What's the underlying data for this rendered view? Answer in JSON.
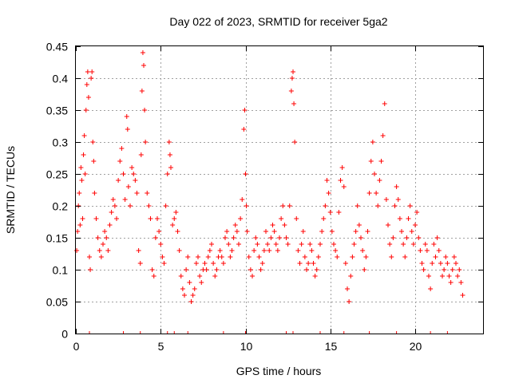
{
  "chart_data": {
    "type": "scatter",
    "title": "Day 022 of 2023, SRMTID for receiver 5ga2",
    "xlabel": "GPS time / hours",
    "ylabel": "SRMTID / TECUs",
    "xlim": [
      0,
      24
    ],
    "ylim": [
      0,
      0.45
    ],
    "xticks": [
      "0",
      "5",
      "10",
      "15",
      "20"
    ],
    "xtick_values": [
      0,
      5,
      10,
      15,
      20
    ],
    "yticks": [
      "0",
      "0.05",
      "0.1",
      "0.15",
      "0.2",
      "0.25",
      "0.3",
      "0.35",
      "0.4",
      "0.45"
    ],
    "ytick_values": [
      0,
      0.05,
      0.1,
      0.15,
      0.2,
      0.25,
      0.3,
      0.35,
      0.4,
      0.45
    ],
    "grid": true,
    "marker": "+",
    "color": "#ff0000",
    "series": [
      {
        "name": "SRMTID",
        "points": [
          [
            0.05,
            0.13
          ],
          [
            0.1,
            0.16
          ],
          [
            0.15,
            0.2
          ],
          [
            0.2,
            0.22
          ],
          [
            0.25,
            0.17
          ],
          [
            0.3,
            0.26
          ],
          [
            0.35,
            0.24
          ],
          [
            0.4,
            0.18
          ],
          [
            0.45,
            0.28
          ],
          [
            0.5,
            0.31
          ],
          [
            0.55,
            0.25
          ],
          [
            0.6,
            0.35
          ],
          [
            0.65,
            0.39
          ],
          [
            0.7,
            0.41
          ],
          [
            0.75,
            0.37
          ],
          [
            0.8,
            0.12
          ],
          [
            0.85,
            0.1
          ],
          [
            0.9,
            0.4
          ],
          [
            0.95,
            0.41
          ],
          [
            1.0,
            0.3
          ],
          [
            1.05,
            0.27
          ],
          [
            1.1,
            0.22
          ],
          [
            1.2,
            0.18
          ],
          [
            1.3,
            0.15
          ],
          [
            1.4,
            0.13
          ],
          [
            1.5,
            0.12
          ],
          [
            1.6,
            0.14
          ],
          [
            1.7,
            0.16
          ],
          [
            1.8,
            0.15
          ],
          [
            1.9,
            0.13
          ],
          [
            2.0,
            0.17
          ],
          [
            2.1,
            0.19
          ],
          [
            2.2,
            0.21
          ],
          [
            2.3,
            0.2
          ],
          [
            2.4,
            0.18
          ],
          [
            2.5,
            0.24
          ],
          [
            2.6,
            0.27
          ],
          [
            2.7,
            0.29
          ],
          [
            2.8,
            0.25
          ],
          [
            2.9,
            0.21
          ],
          [
            3.0,
            0.34
          ],
          [
            3.05,
            0.32
          ],
          [
            3.1,
            0.23
          ],
          [
            3.2,
            0.2
          ],
          [
            3.3,
            0.26
          ],
          [
            3.4,
            0.25
          ],
          [
            3.5,
            0.24
          ],
          [
            3.6,
            0.22
          ],
          [
            3.7,
            0.13
          ],
          [
            3.8,
            0.11
          ],
          [
            3.85,
            0.28
          ],
          [
            3.9,
            0.38
          ],
          [
            3.95,
            0.44
          ],
          [
            4.0,
            0.42
          ],
          [
            4.05,
            0.35
          ],
          [
            4.1,
            0.3
          ],
          [
            4.2,
            0.22
          ],
          [
            4.3,
            0.2
          ],
          [
            4.4,
            0.18
          ],
          [
            4.5,
            0.1
          ],
          [
            4.6,
            0.09
          ],
          [
            4.7,
            0.15
          ],
          [
            4.8,
            0.18
          ],
          [
            4.9,
            0.16
          ],
          [
            5.0,
            0.14
          ],
          [
            5.1,
            0.12
          ],
          [
            5.2,
            0.11
          ],
          [
            5.3,
            0.2
          ],
          [
            5.4,
            0.25
          ],
          [
            5.5,
            0.3
          ],
          [
            5.55,
            0.28
          ],
          [
            5.6,
            0.26
          ],
          [
            5.7,
            0.17
          ],
          [
            5.8,
            0.18
          ],
          [
            5.9,
            0.19
          ],
          [
            6.0,
            0.16
          ],
          [
            6.1,
            0.13
          ],
          [
            6.2,
            0.09
          ],
          [
            6.3,
            0.07
          ],
          [
            6.4,
            0.06
          ],
          [
            6.5,
            0.1
          ],
          [
            6.6,
            0.12
          ],
          [
            6.7,
            0.08
          ],
          [
            6.8,
            0.05
          ],
          [
            6.9,
            0.06
          ],
          [
            7.0,
            0.07
          ],
          [
            7.1,
            0.11
          ],
          [
            7.2,
            0.12
          ],
          [
            7.3,
            0.09
          ],
          [
            7.4,
            0.08
          ],
          [
            7.5,
            0.1
          ],
          [
            7.6,
            0.11
          ],
          [
            7.7,
            0.1
          ],
          [
            7.8,
            0.12
          ],
          [
            7.9,
            0.13
          ],
          [
            8.0,
            0.14
          ],
          [
            8.1,
            0.11
          ],
          [
            8.2,
            0.09
          ],
          [
            8.3,
            0.1
          ],
          [
            8.4,
            0.12
          ],
          [
            8.5,
            0.13
          ],
          [
            8.6,
            0.12
          ],
          [
            8.7,
            0.11
          ],
          [
            8.8,
            0.15
          ],
          [
            8.9,
            0.16
          ],
          [
            9.0,
            0.14
          ],
          [
            9.1,
            0.12
          ],
          [
            9.2,
            0.13
          ],
          [
            9.3,
            0.15
          ],
          [
            9.4,
            0.17
          ],
          [
            9.5,
            0.16
          ],
          [
            9.6,
            0.14
          ],
          [
            9.7,
            0.18
          ],
          [
            9.8,
            0.21
          ],
          [
            9.9,
            0.32
          ],
          [
            9.95,
            0.35
          ],
          [
            10.0,
            0.25
          ],
          [
            10.05,
            0.2
          ],
          [
            10.1,
            0.16
          ],
          [
            10.2,
            0.12
          ],
          [
            10.3,
            0.1
          ],
          [
            10.4,
            0.09
          ],
          [
            10.5,
            0.13
          ],
          [
            10.6,
            0.15
          ],
          [
            10.7,
            0.14
          ],
          [
            10.8,
            0.12
          ],
          [
            10.9,
            0.1
          ],
          [
            11.0,
            0.11
          ],
          [
            11.1,
            0.13
          ],
          [
            11.2,
            0.16
          ],
          [
            11.3,
            0.14
          ],
          [
            11.4,
            0.13
          ],
          [
            11.5,
            0.15
          ],
          [
            11.6,
            0.17
          ],
          [
            11.7,
            0.16
          ],
          [
            11.8,
            0.14
          ],
          [
            11.9,
            0.13
          ],
          [
            12.0,
            0.15
          ],
          [
            12.1,
            0.18
          ],
          [
            12.2,
            0.2
          ],
          [
            12.3,
            0.17
          ],
          [
            12.4,
            0.15
          ],
          [
            12.5,
            0.14
          ],
          [
            12.6,
            0.2
          ],
          [
            12.7,
            0.38
          ],
          [
            12.75,
            0.4
          ],
          [
            12.8,
            0.41
          ],
          [
            12.85,
            0.36
          ],
          [
            12.9,
            0.3
          ],
          [
            13.0,
            0.18
          ],
          [
            13.1,
            0.13
          ],
          [
            13.2,
            0.11
          ],
          [
            13.3,
            0.14
          ],
          [
            13.4,
            0.16
          ],
          [
            13.5,
            0.12
          ],
          [
            13.6,
            0.1
          ],
          [
            13.7,
            0.11
          ],
          [
            13.8,
            0.14
          ],
          [
            13.9,
            0.13
          ],
          [
            14.0,
            0.11
          ],
          [
            14.1,
            0.09
          ],
          [
            14.2,
            0.1
          ],
          [
            14.3,
            0.12
          ],
          [
            14.4,
            0.14
          ],
          [
            14.5,
            0.16
          ],
          [
            14.6,
            0.18
          ],
          [
            14.7,
            0.2
          ],
          [
            14.8,
            0.24
          ],
          [
            14.9,
            0.22
          ],
          [
            15.0,
            0.19
          ],
          [
            15.1,
            0.16
          ],
          [
            15.2,
            0.14
          ],
          [
            15.3,
            0.13
          ],
          [
            15.4,
            0.12
          ],
          [
            15.5,
            0.19
          ],
          [
            15.6,
            0.24
          ],
          [
            15.7,
            0.26
          ],
          [
            15.8,
            0.23
          ],
          [
            15.9,
            0.11
          ],
          [
            16.0,
            0.07
          ],
          [
            16.1,
            0.05
          ],
          [
            16.2,
            0.09
          ],
          [
            16.3,
            0.12
          ],
          [
            16.4,
            0.14
          ],
          [
            16.5,
            0.16
          ],
          [
            16.6,
            0.2
          ],
          [
            16.7,
            0.17
          ],
          [
            16.8,
            0.15
          ],
          [
            16.9,
            0.13
          ],
          [
            17.0,
            0.1
          ],
          [
            17.1,
            0.12
          ],
          [
            17.2,
            0.16
          ],
          [
            17.3,
            0.22
          ],
          [
            17.4,
            0.27
          ],
          [
            17.5,
            0.3
          ],
          [
            17.6,
            0.25
          ],
          [
            17.7,
            0.22
          ],
          [
            17.8,
            0.2
          ],
          [
            17.9,
            0.24
          ],
          [
            18.0,
            0.27
          ],
          [
            18.1,
            0.31
          ],
          [
            18.2,
            0.36
          ],
          [
            18.3,
            0.21
          ],
          [
            18.4,
            0.17
          ],
          [
            18.5,
            0.14
          ],
          [
            18.6,
            0.12
          ],
          [
            18.7,
            0.15
          ],
          [
            18.8,
            0.2
          ],
          [
            18.9,
            0.23
          ],
          [
            19.0,
            0.21
          ],
          [
            19.1,
            0.18
          ],
          [
            19.2,
            0.16
          ],
          [
            19.3,
            0.14
          ],
          [
            19.4,
            0.12
          ],
          [
            19.5,
            0.15
          ],
          [
            19.6,
            0.18
          ],
          [
            19.7,
            0.2
          ],
          [
            19.8,
            0.16
          ],
          [
            19.9,
            0.14
          ],
          [
            20.0,
            0.17
          ],
          [
            20.1,
            0.19
          ],
          [
            20.2,
            0.15
          ],
          [
            20.3,
            0.13
          ],
          [
            20.4,
            0.11
          ],
          [
            20.5,
            0.1
          ],
          [
            20.6,
            0.14
          ],
          [
            20.7,
            0.13
          ],
          [
            20.8,
            0.09
          ],
          [
            20.9,
            0.07
          ],
          [
            21.0,
            0.11
          ],
          [
            21.1,
            0.14
          ],
          [
            21.2,
            0.12
          ],
          [
            21.3,
            0.15
          ],
          [
            21.4,
            0.13
          ],
          [
            21.5,
            0.11
          ],
          [
            21.6,
            0.09
          ],
          [
            21.7,
            0.1
          ],
          [
            21.8,
            0.12
          ],
          [
            21.9,
            0.11
          ],
          [
            22.0,
            0.09
          ],
          [
            22.1,
            0.08
          ],
          [
            22.2,
            0.1
          ],
          [
            22.3,
            0.12
          ],
          [
            22.4,
            0.11
          ],
          [
            22.5,
            0.09
          ],
          [
            22.6,
            0.1
          ],
          [
            22.7,
            0.08
          ],
          [
            22.8,
            0.06
          ]
        ]
      }
    ],
    "zero_points": [
      0.8,
      2.8,
      3.8,
      5.4,
      5.8,
      6.6,
      8.7,
      10.0,
      12.4,
      12.8,
      14.4,
      15.8,
      17.3,
      18.9,
      20.9,
      21.9
    ]
  }
}
